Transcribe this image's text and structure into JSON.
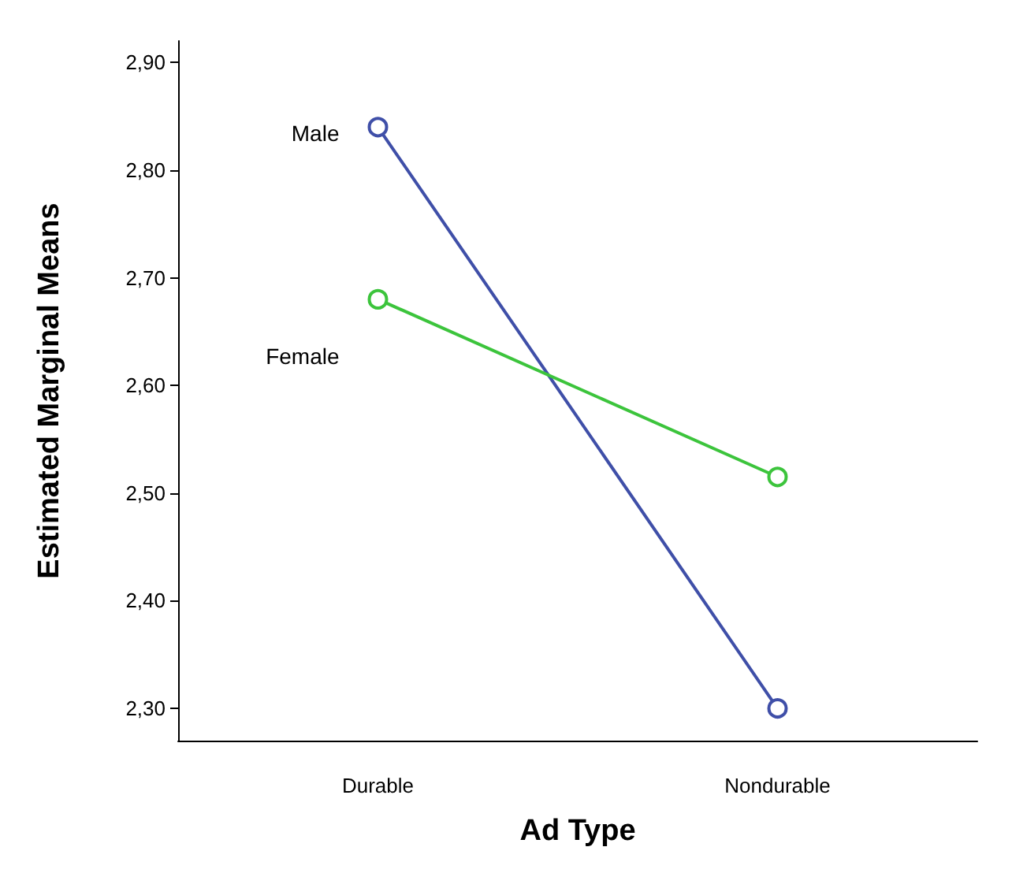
{
  "chart_data": {
    "type": "line",
    "xlabel": "Ad Type",
    "ylabel": "Estimated Marginal Means",
    "categories": [
      "Durable",
      "Nondurable"
    ],
    "series": [
      {
        "name": "Male",
        "color": "#3f4fa8",
        "values": [
          2.84,
          2.3
        ]
      },
      {
        "name": "Female",
        "color": "#3cc43c",
        "values": [
          2.68,
          2.515
        ]
      }
    ],
    "ylim": [
      2.27,
      2.92
    ],
    "yticks": [
      {
        "value": 2.3,
        "label": "2,30"
      },
      {
        "value": 2.4,
        "label": "2,40"
      },
      {
        "value": 2.5,
        "label": "2,50"
      },
      {
        "value": 2.6,
        "label": "2,60"
      },
      {
        "value": 2.7,
        "label": "2,70"
      },
      {
        "value": 2.8,
        "label": "2,80"
      },
      {
        "value": 2.9,
        "label": "2,90"
      }
    ],
    "grid": false,
    "legend": false,
    "marker": "circle",
    "line_style": "solid"
  }
}
